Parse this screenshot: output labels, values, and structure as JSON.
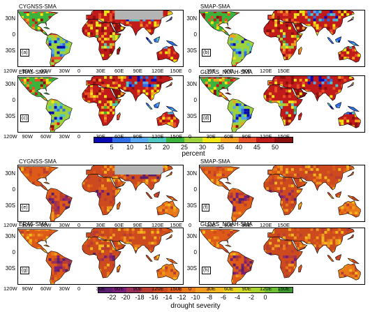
{
  "colors": {
    "percent_scale": [
      "#0a0ab4",
      "#2f6de6",
      "#57a6f0",
      "#50c6c0",
      "#3cb43c",
      "#9ed23c",
      "#f0e614",
      "#f5a01e",
      "#e8502a",
      "#c01a1a",
      "#8c0f0f"
    ],
    "drought_scale": [
      "#5a1e6e",
      "#7a1e7a",
      "#9a2f5a",
      "#b83c32",
      "#cc4a1e",
      "#de5a18",
      "#e97a1a",
      "#ef9a1e",
      "#f2b81e",
      "#ecd21e",
      "#d2dc28",
      "#a8d22e",
      "#6cbe32",
      "#3c9a2e"
    ],
    "ocean": "#ffffff",
    "missing": "#b4b4b4"
  },
  "panels": [
    {
      "id": "a",
      "label": "(a)",
      "title": "CYGNSS-SMA",
      "scheme": "percent"
    },
    {
      "id": "b",
      "label": "(b)",
      "title": "SMAP-SMA",
      "scheme": "percent"
    },
    {
      "id": "c",
      "label": "(c)",
      "title": "ERA5-SMA",
      "scheme": "percent"
    },
    {
      "id": "d",
      "label": "(d)",
      "title": "GLDAS_NOAH-SMA",
      "scheme": "percent"
    },
    {
      "id": "e",
      "label": "(e)",
      "title": "CYGNSS-SMA",
      "scheme": "drought"
    },
    {
      "id": "f",
      "label": "(f)",
      "title": "SMAP-SMA",
      "scheme": "drought"
    },
    {
      "id": "g",
      "label": "(g)",
      "title": "ERA5-SMA",
      "scheme": "drought"
    },
    {
      "id": "h",
      "label": "(h)",
      "title": "GLDAS_NOAH-SMA",
      "scheme": "drought"
    }
  ],
  "lat_labels": [
    "30N",
    "0",
    "30S"
  ],
  "lon_labels": [
    "120W",
    "90W",
    "60W",
    "30W",
    "0",
    "30E",
    "60E",
    "90E",
    "120E",
    "150E"
  ],
  "colorbar_percent": {
    "ticks": [
      "5",
      "10",
      "15",
      "20",
      "25",
      "30",
      "35",
      "40",
      "45",
      "50"
    ],
    "title": "percent"
  },
  "colorbar_drought": {
    "ticks": [
      "-22",
      "-20",
      "-18",
      "-16",
      "-14",
      "-12",
      "-10",
      "-8",
      "-6",
      "-4",
      "-2",
      "0"
    ],
    "title": "drought severity"
  }
}
